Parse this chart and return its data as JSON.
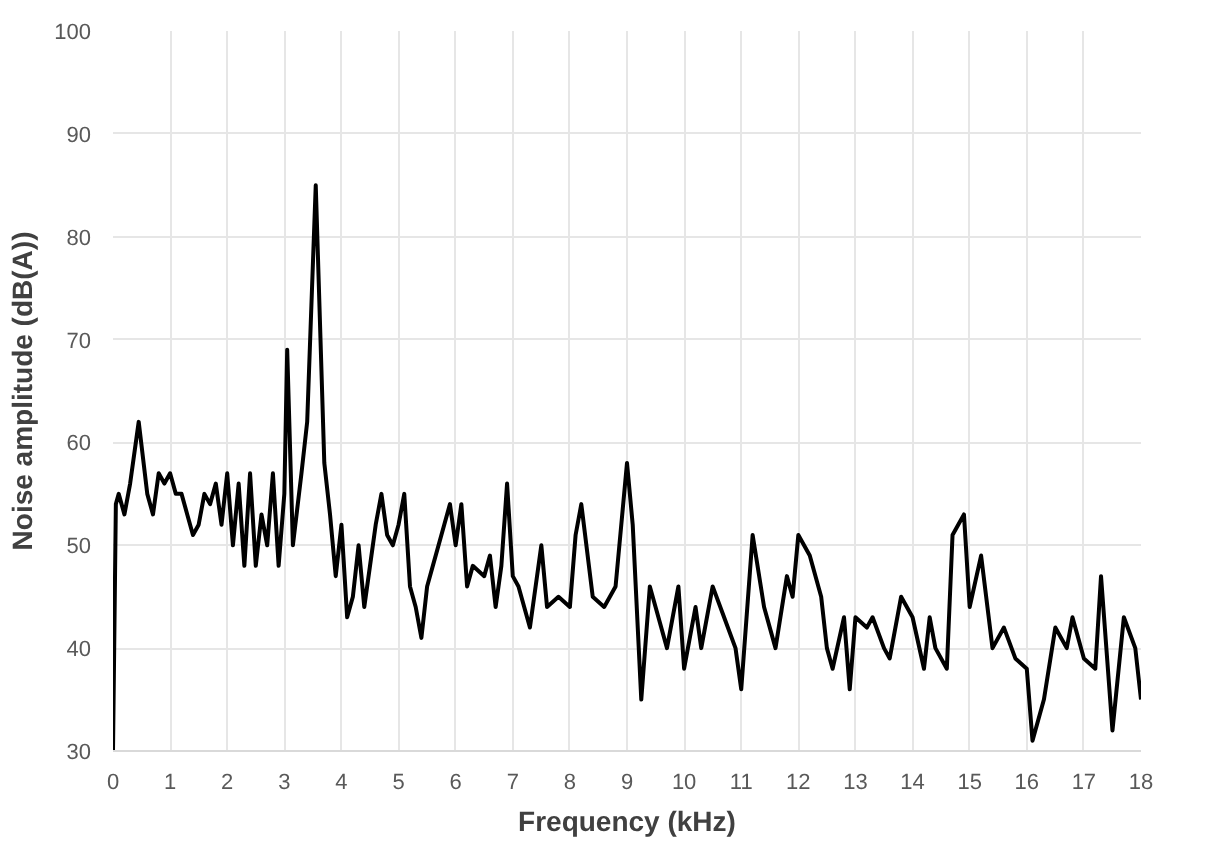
{
  "chart_data": {
    "type": "line",
    "xlabel": "Frequency (kHz)",
    "ylabel": "Noise amplitude (dB(A))",
    "xlim": [
      0,
      18
    ],
    "ylim": [
      30,
      100
    ],
    "xticks": [
      0,
      1,
      2,
      3,
      4,
      5,
      6,
      7,
      8,
      9,
      10,
      11,
      12,
      13,
      14,
      15,
      16,
      17,
      18
    ],
    "yticks": [
      30,
      40,
      50,
      60,
      70,
      80,
      90,
      100
    ],
    "grid": true,
    "marker": "none",
    "line_style": "solid",
    "series": [
      {
        "color": "#000000",
        "x": [
          0,
          0.05,
          0.1,
          0.2,
          0.3,
          0.45,
          0.6,
          0.7,
          0.8,
          0.9,
          1.0,
          1.1,
          1.2,
          1.3,
          1.4,
          1.5,
          1.6,
          1.7,
          1.8,
          1.9,
          2.0,
          2.1,
          2.2,
          2.3,
          2.4,
          2.5,
          2.6,
          2.7,
          2.8,
          2.9,
          3.0,
          3.05,
          3.15,
          3.3,
          3.4,
          3.55,
          3.7,
          3.8,
          3.9,
          4.0,
          4.1,
          4.2,
          4.3,
          4.4,
          4.5,
          4.6,
          4.7,
          4.8,
          4.9,
          5.0,
          5.1,
          5.2,
          5.3,
          5.4,
          5.5,
          5.6,
          5.8,
          5.9,
          6.0,
          6.1,
          6.2,
          6.3,
          6.5,
          6.6,
          6.7,
          6.8,
          6.9,
          7.0,
          7.1,
          7.3,
          7.5,
          7.6,
          7.8,
          8.0,
          8.1,
          8.2,
          8.4,
          8.6,
          8.8,
          9.0,
          9.1,
          9.25,
          9.4,
          9.5,
          9.7,
          9.9,
          10.0,
          10.2,
          10.3,
          10.5,
          10.7,
          10.9,
          11.0,
          11.2,
          11.4,
          11.6,
          11.8,
          11.9,
          12.0,
          12.2,
          12.4,
          12.5,
          12.6,
          12.8,
          12.9,
          13.0,
          13.2,
          13.3,
          13.5,
          13.6,
          13.8,
          14.0,
          14.2,
          14.3,
          14.4,
          14.6,
          14.7,
          14.9,
          15.0,
          15.2,
          15.4,
          15.6,
          15.8,
          16.0,
          16.1,
          16.3,
          16.5,
          16.7,
          16.8,
          17.0,
          17.2,
          17.3,
          17.5,
          17.7,
          17.9,
          18.0
        ],
        "values": [
          30,
          54,
          55,
          53,
          56,
          62,
          55,
          53,
          57,
          56,
          57,
          55,
          55,
          53,
          51,
          52,
          55,
          54,
          56,
          52,
          57,
          50,
          56,
          48,
          57,
          48,
          53,
          50,
          57,
          48,
          55,
          69,
          50,
          57,
          62,
          85,
          58,
          53,
          47,
          52,
          43,
          45,
          50,
          44,
          48,
          52,
          55,
          51,
          50,
          52,
          55,
          46,
          44,
          41,
          46,
          48,
          52,
          54,
          50,
          54,
          46,
          48,
          47,
          49,
          44,
          48,
          56,
          47,
          46,
          42,
          50,
          44,
          45,
          44,
          51,
          54,
          45,
          44,
          46,
          58,
          52,
          35,
          46,
          44,
          40,
          46,
          38,
          44,
          40,
          46,
          43,
          40,
          36,
          51,
          44,
          40,
          47,
          45,
          51,
          49,
          45,
          40,
          38,
          43,
          36,
          43,
          42,
          43,
          40,
          39,
          45,
          43,
          38,
          43,
          40,
          38,
          51,
          53,
          44,
          49,
          40,
          42,
          39,
          38,
          31,
          35,
          42,
          40,
          43,
          39,
          38,
          47,
          32,
          43,
          40,
          35
        ]
      }
    ]
  }
}
